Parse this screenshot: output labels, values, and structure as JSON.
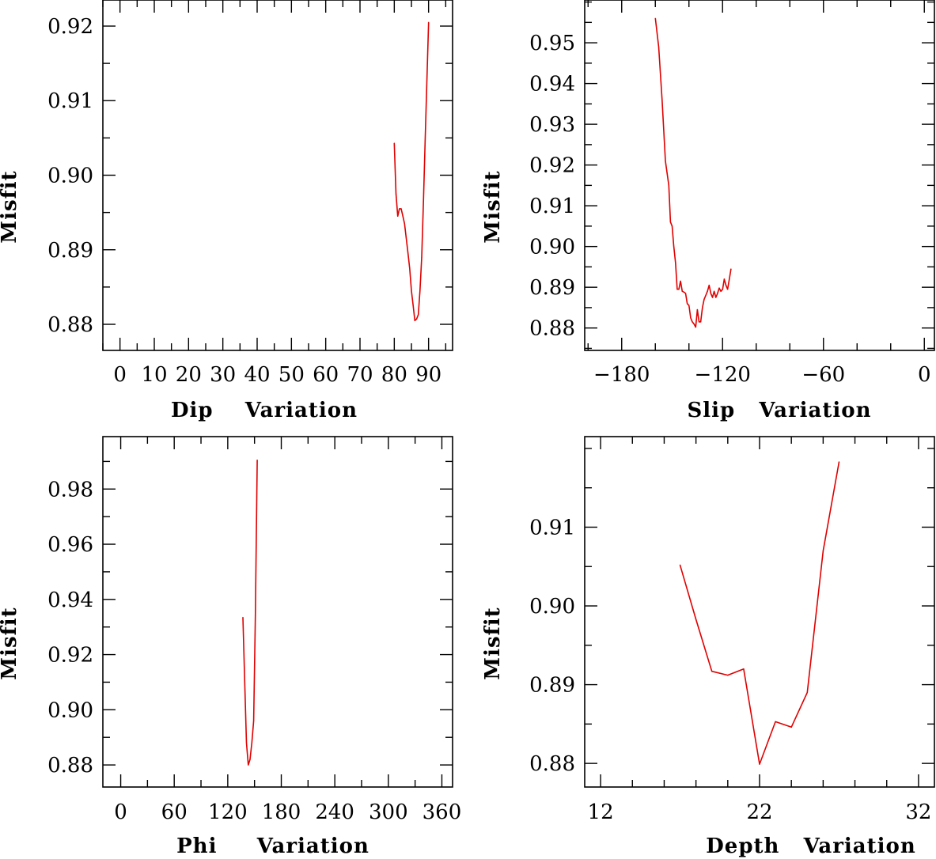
{
  "chart_data": [
    {
      "type": "line",
      "xlabel": "Dip    Variation",
      "ylabel": "Misfit",
      "xlim": [
        -5,
        97
      ],
      "ylim": [
        0.8765,
        0.9235
      ],
      "xticks": [
        0,
        10,
        20,
        30,
        40,
        50,
        60,
        70,
        80,
        90
      ],
      "xticklabels": [
        "0",
        "10",
        "20",
        "30",
        "40",
        "50",
        "60",
        "70",
        "80",
        "90"
      ],
      "yticks": [
        0.88,
        0.89,
        0.9,
        0.91,
        0.92
      ],
      "yticklabels": [
        "0.88",
        "0.89",
        "0.90",
        "0.91",
        "0.92"
      ],
      "xminor": 5,
      "yminor": 0.005,
      "series": [
        {
          "name": "misfit",
          "color": "#e00000",
          "x": [
            80,
            80.5,
            81,
            81.5,
            82,
            82.5,
            83,
            84,
            84.5,
            85,
            85.5,
            86,
            86.5,
            87,
            87.5,
            88,
            88.5,
            89,
            90
          ],
          "y": [
            0.9043,
            0.8975,
            0.8945,
            0.8955,
            0.8955,
            0.8945,
            0.8935,
            0.8895,
            0.8875,
            0.8845,
            0.8825,
            0.8805,
            0.8807,
            0.8813,
            0.8845,
            0.889,
            0.8965,
            0.9045,
            0.9205
          ]
        }
      ]
    },
    {
      "type": "line",
      "xlabel": "Slip   Variation",
      "ylabel": "Misfit",
      "xlim": [
        -202,
        6
      ],
      "ylim": [
        0.8745,
        0.9605
      ],
      "xticks": [
        -180,
        -120,
        -60,
        0
      ],
      "xticklabels": [
        "−180",
        "−120",
        "−60",
        "0"
      ],
      "yticks": [
        0.88,
        0.89,
        0.9,
        0.91,
        0.92,
        0.93,
        0.94,
        0.95
      ],
      "yticklabels": [
        "0.88",
        "0.89",
        "0.90",
        "0.91",
        "0.92",
        "0.93",
        "0.94",
        "0.95"
      ],
      "xminor": 20,
      "yminor": 0.005,
      "series": [
        {
          "name": "misfit",
          "color": "#e00000",
          "x": [
            -160,
            -158,
            -156,
            -154,
            -152,
            -151,
            -150,
            -149,
            -148,
            -147,
            -146,
            -145,
            -144,
            -143,
            -142,
            -141,
            -140,
            -139,
            -138,
            -137,
            -136,
            -135,
            -134,
            -133,
            -132,
            -131,
            -130,
            -129,
            -128,
            -127,
            -126,
            -125,
            -124,
            -123,
            -122,
            -121,
            -120,
            -119,
            -118,
            -117,
            -116,
            -115
          ],
          "y": [
            0.956,
            0.949,
            0.936,
            0.921,
            0.915,
            0.906,
            0.905,
            0.9,
            0.896,
            0.8895,
            0.8895,
            0.8915,
            0.889,
            0.8888,
            0.8885,
            0.886,
            0.8855,
            0.8825,
            0.8815,
            0.881,
            0.8802,
            0.8845,
            0.8815,
            0.8815,
            0.885,
            0.887,
            0.888,
            0.889,
            0.8905,
            0.8885,
            0.8875,
            0.889,
            0.8875,
            0.8885,
            0.8898,
            0.889,
            0.8895,
            0.892,
            0.8905,
            0.8895,
            0.892,
            0.8945
          ]
        }
      ]
    },
    {
      "type": "line",
      "xlabel": "Phi     Variation",
      "ylabel": "Misfit",
      "xlim": [
        -20,
        372
      ],
      "ylim": [
        0.872,
        0.999
      ],
      "xticks": [
        0,
        60,
        120,
        180,
        240,
        300,
        360
      ],
      "xticklabels": [
        "0",
        "60",
        "120",
        "180",
        "240",
        "300",
        "360"
      ],
      "yticks": [
        0.88,
        0.9,
        0.92,
        0.94,
        0.96,
        0.98
      ],
      "yticklabels": [
        "0.88",
        "0.90",
        "0.92",
        "0.94",
        "0.96",
        "0.98"
      ],
      "xminor": 30,
      "yminor": 0.01,
      "series": [
        {
          "name": "misfit",
          "color": "#e00000",
          "x": [
            137,
            139,
            141,
            143,
            145,
            147,
            149,
            151,
            153
          ],
          "y": [
            0.9335,
            0.91,
            0.888,
            0.88,
            0.882,
            0.888,
            0.896,
            0.935,
            0.9905
          ]
        }
      ]
    },
    {
      "type": "line",
      "xlabel": "Depth   Variation",
      "ylabel": "Misfit",
      "xlim": [
        11,
        33
      ],
      "ylim": [
        0.877,
        0.9215
      ],
      "xticks": [
        12,
        22,
        32
      ],
      "xticklabels": [
        "12",
        "22",
        "32"
      ],
      "yticks": [
        0.88,
        0.89,
        0.9,
        0.91
      ],
      "yticklabels": [
        "0.88",
        "0.89",
        "0.90",
        "0.91"
      ],
      "xminor": 2,
      "yminor": 0.005,
      "series": [
        {
          "name": "misfit",
          "color": "#e00000",
          "x": [
            17,
            18,
            19,
            20,
            21,
            22,
            23,
            24,
            25,
            26,
            27
          ],
          "y": [
            0.9052,
            0.8983,
            0.8917,
            0.8912,
            0.892,
            0.8799,
            0.8853,
            0.8846,
            0.889,
            0.907,
            0.9183
          ]
        }
      ]
    }
  ]
}
